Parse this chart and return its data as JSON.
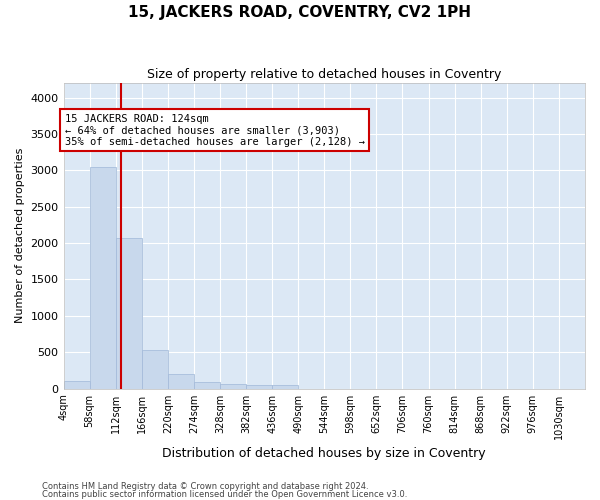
{
  "title": "15, JACKERS ROAD, COVENTRY, CV2 1PH",
  "subtitle": "Size of property relative to detached houses in Coventry",
  "xlabel": "Distribution of detached houses by size in Coventry",
  "ylabel": "Number of detached properties",
  "footer_line1": "Contains HM Land Registry data © Crown copyright and database right 2024.",
  "footer_line2": "Contains public sector information licensed under the Open Government Licence v3.0.",
  "bar_color": "#c8d8ec",
  "bar_edge_color": "#a0b8d8",
  "bg_color": "#dce8f5",
  "grid_color": "#ffffff",
  "fig_bg_color": "#ffffff",
  "vline_color": "#cc0000",
  "annotation_text_line1": "15 JACKERS ROAD: 124sqm",
  "annotation_text_line2": "← 64% of detached houses are smaller (3,903)",
  "annotation_text_line3": "35% of semi-detached houses are larger (2,128) →",
  "vline_x": 124,
  "bin_edges": [
    4,
    58,
    112,
    166,
    220,
    274,
    328,
    382,
    436,
    490,
    544,
    598,
    652,
    706,
    760,
    814,
    868,
    922,
    976,
    1030,
    1084
  ],
  "bar_heights": [
    100,
    3050,
    2075,
    535,
    200,
    90,
    65,
    55,
    45,
    0,
    0,
    0,
    0,
    0,
    0,
    0,
    0,
    0,
    0,
    0
  ],
  "ylim": [
    0,
    4200
  ],
  "yticks": [
    0,
    500,
    1000,
    1500,
    2000,
    2500,
    3000,
    3500,
    4000
  ]
}
